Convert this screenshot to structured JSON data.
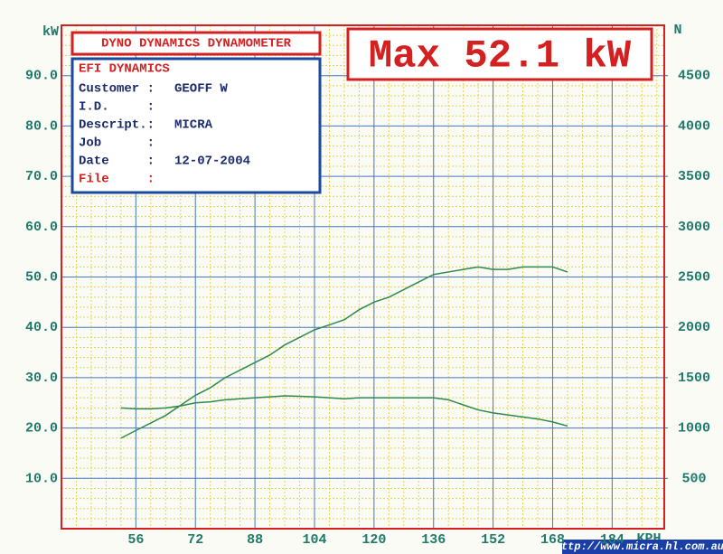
{
  "chart_data": {
    "type": "line",
    "title": "DYNO DYNAMICS DYNAMOMETER",
    "annotation": "Max 52.1 kW",
    "ylabel": "kW",
    "y2label": "N",
    "xlabel": "KPH",
    "x": [
      52,
      56,
      60,
      64,
      68,
      72,
      76,
      80,
      84,
      88,
      92,
      96,
      100,
      104,
      108,
      112,
      116,
      120,
      124,
      128,
      132,
      136,
      140,
      144,
      148,
      152,
      156,
      160,
      164,
      168,
      172
    ],
    "series": [
      {
        "color": "#2e8a4e",
        "values": [
          18,
          19.5,
          21,
          22.5,
          24.5,
          26.5,
          28,
          30,
          31.5,
          33,
          34.5,
          36.5,
          38,
          39.5,
          40.5,
          41.5,
          43.5,
          45,
          46,
          47.5,
          49,
          50.5,
          51,
          51.5,
          52,
          51.5,
          51.5,
          52,
          52,
          52,
          51
        ]
      },
      {
        "color": "#2e8a4e",
        "axis": "y2",
        "values": [
          1200,
          1190,
          1190,
          1200,
          1220,
          1250,
          1260,
          1280,
          1290,
          1300,
          1310,
          1320,
          1315,
          1310,
          1300,
          1290,
          1300,
          1300,
          1300,
          1300,
          1300,
          1300,
          1280,
          1230,
          1180,
          1150,
          1130,
          1110,
          1090,
          1060,
          1020
        ]
      }
    ],
    "xlim": [
      36,
      198
    ],
    "xticks": [
      56,
      72,
      88,
      104,
      120,
      136,
      152,
      168,
      184
    ],
    "ylim": [
      0,
      100
    ],
    "yticks": [
      {
        "value": 10,
        "label": "10.0"
      },
      {
        "value": 20,
        "label": "20.0"
      },
      {
        "value": 30,
        "label": "30.0"
      },
      {
        "value": 40,
        "label": "40.0"
      },
      {
        "value": 50,
        "label": "50.0"
      },
      {
        "value": 60,
        "label": "60.0"
      },
      {
        "value": 70,
        "label": "70.0"
      },
      {
        "value": 80,
        "label": "80.0"
      },
      {
        "value": 90,
        "label": "90.0"
      }
    ],
    "y2lim": [
      0,
      5000
    ],
    "y2ticks": [
      500,
      1000,
      1500,
      2000,
      2500,
      3000,
      3500,
      4000,
      4500
    ],
    "grid": true,
    "info": {
      "heading": "EFI DYNAMICS",
      "rows": [
        [
          "Customer :",
          "GEOFF W"
        ],
        [
          "I.D.     :"
        ],
        [
          "Descript.:",
          "MICRA"
        ],
        [
          "Job      :"
        ],
        [
          "Date     :",
          "12-07-2004"
        ],
        [
          "File     :"
        ]
      ]
    },
    "watermark": "http://www.micra.hl.com.au/"
  }
}
